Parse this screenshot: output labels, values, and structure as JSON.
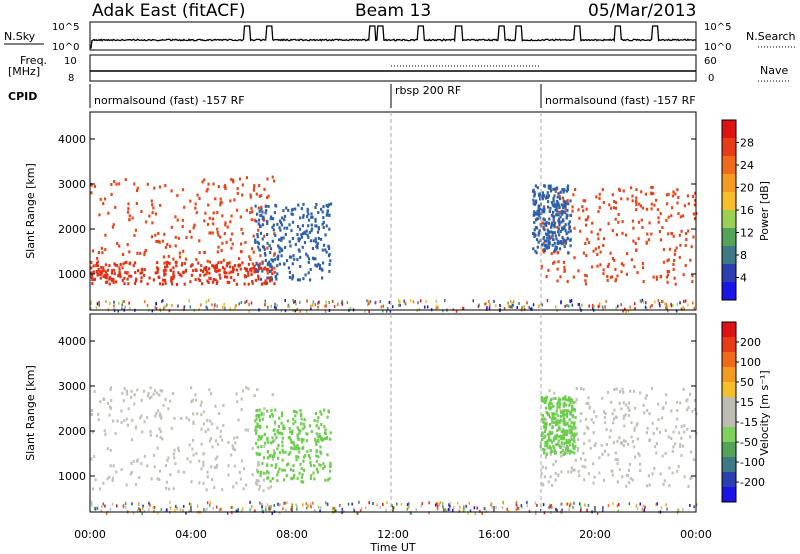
{
  "header": {
    "station": "Adak East (fitACF)",
    "beam": "Beam 13",
    "date": "05/Mar/2013"
  },
  "top_panels": {
    "nsky_label": "N.Sky",
    "nsearch_label": "N.Search",
    "nsky_ticks": [
      "10^5",
      "10^0"
    ],
    "freq_label_1": "Freq.",
    "freq_label_2": "[MHz]",
    "freq_ticks": [
      "10",
      "8"
    ],
    "nave_label": "Nave",
    "nave_ticks": [
      "60",
      "0"
    ],
    "cpid_label": "CPID",
    "cpid_segments": [
      {
        "label": "normalsound (fast) -157 RF",
        "start_hour": 0,
        "end_hour": 12
      },
      {
        "label": "rbsp 200 RF",
        "start_hour": 12,
        "end_hour": 18
      },
      {
        "label": "normalsound (fast) -157 RF",
        "start_hour": 18,
        "end_hour": 24
      }
    ],
    "nsky_spike_hours": [
      6.2,
      7.1,
      11.2,
      11.5,
      13.1,
      14.6,
      16.3,
      17.0,
      19.3,
      20.9,
      22.4
    ]
  },
  "chart_data": [
    {
      "type": "heatmap",
      "name": "power",
      "ylabel": "Slant Range [km]",
      "xlabel": "",
      "y_ticks": [
        "1000",
        "2000",
        "3000",
        "4000"
      ],
      "ylim": [
        200,
        4600
      ],
      "xlim": [
        0,
        24
      ],
      "colorbar_label": "Power [dB]",
      "colorbar_ticks": [
        "4",
        "8",
        "12",
        "16",
        "20",
        "24",
        "28"
      ],
      "colorbar_colors": [
        "#1c14e6",
        "#2b3fae",
        "#3e7a86",
        "#53a456",
        "#9bd056",
        "#f6be28",
        "#f39a20",
        "#ef6b1a",
        "#e83b17",
        "#df1212"
      ],
      "bands": [
        {
          "t0": 0.0,
          "t1": 7.3,
          "r0": 1000,
          "r1": 3200,
          "color": "#e8441a"
        },
        {
          "t0": 0.0,
          "t1": 7.3,
          "r0": 800,
          "r1": 1300,
          "color": "#e23015"
        },
        {
          "t0": 6.5,
          "t1": 9.5,
          "r0": 900,
          "r1": 2600,
          "color": "#2f5fa6"
        },
        {
          "t0": 17.8,
          "t1": 24.0,
          "r0": 800,
          "r1": 3000,
          "color": "#e8441a"
        },
        {
          "t0": 17.5,
          "t1": 19.0,
          "r0": 1500,
          "r1": 3000,
          "color": "#2f5fa6"
        }
      ]
    },
    {
      "type": "heatmap",
      "name": "velocity",
      "ylabel": "Slant Range [km]",
      "xlabel": "Time UT",
      "y_ticks": [
        "1000",
        "2000",
        "3000",
        "4000"
      ],
      "ylim": [
        200,
        4600
      ],
      "xlim": [
        0,
        24
      ],
      "x_ticks": [
        "00:00",
        "04:00",
        "08:00",
        "12:00",
        "16:00",
        "20:00",
        "00:00"
      ],
      "colorbar_label": "Velocity [m s⁻¹]",
      "colorbar_ticks": [
        "200",
        "100",
        "50",
        "15",
        "-15",
        "-50",
        "-100",
        "-200"
      ],
      "colorbar_colors": [
        "#1c14e6",
        "#2b3fae",
        "#3e7a86",
        "#53a456",
        "#7fd15e",
        "#bdbdb4",
        "#bdbdb4",
        "#f6be28",
        "#f39a20",
        "#ef6b1a",
        "#e83b17",
        "#df1212"
      ],
      "bands": [
        {
          "t0": 0.0,
          "t1": 7.3,
          "r0": 700,
          "r1": 3000,
          "color": "#c3c2b9"
        },
        {
          "t0": 6.5,
          "t1": 9.5,
          "r0": 900,
          "r1": 2500,
          "color": "#6ccd4e"
        },
        {
          "t0": 17.8,
          "t1": 24.0,
          "r0": 800,
          "r1": 3000,
          "color": "#c3c2b9"
        },
        {
          "t0": 17.8,
          "t1": 19.2,
          "r0": 1500,
          "r1": 2800,
          "color": "#6ccd4e"
        }
      ]
    }
  ]
}
